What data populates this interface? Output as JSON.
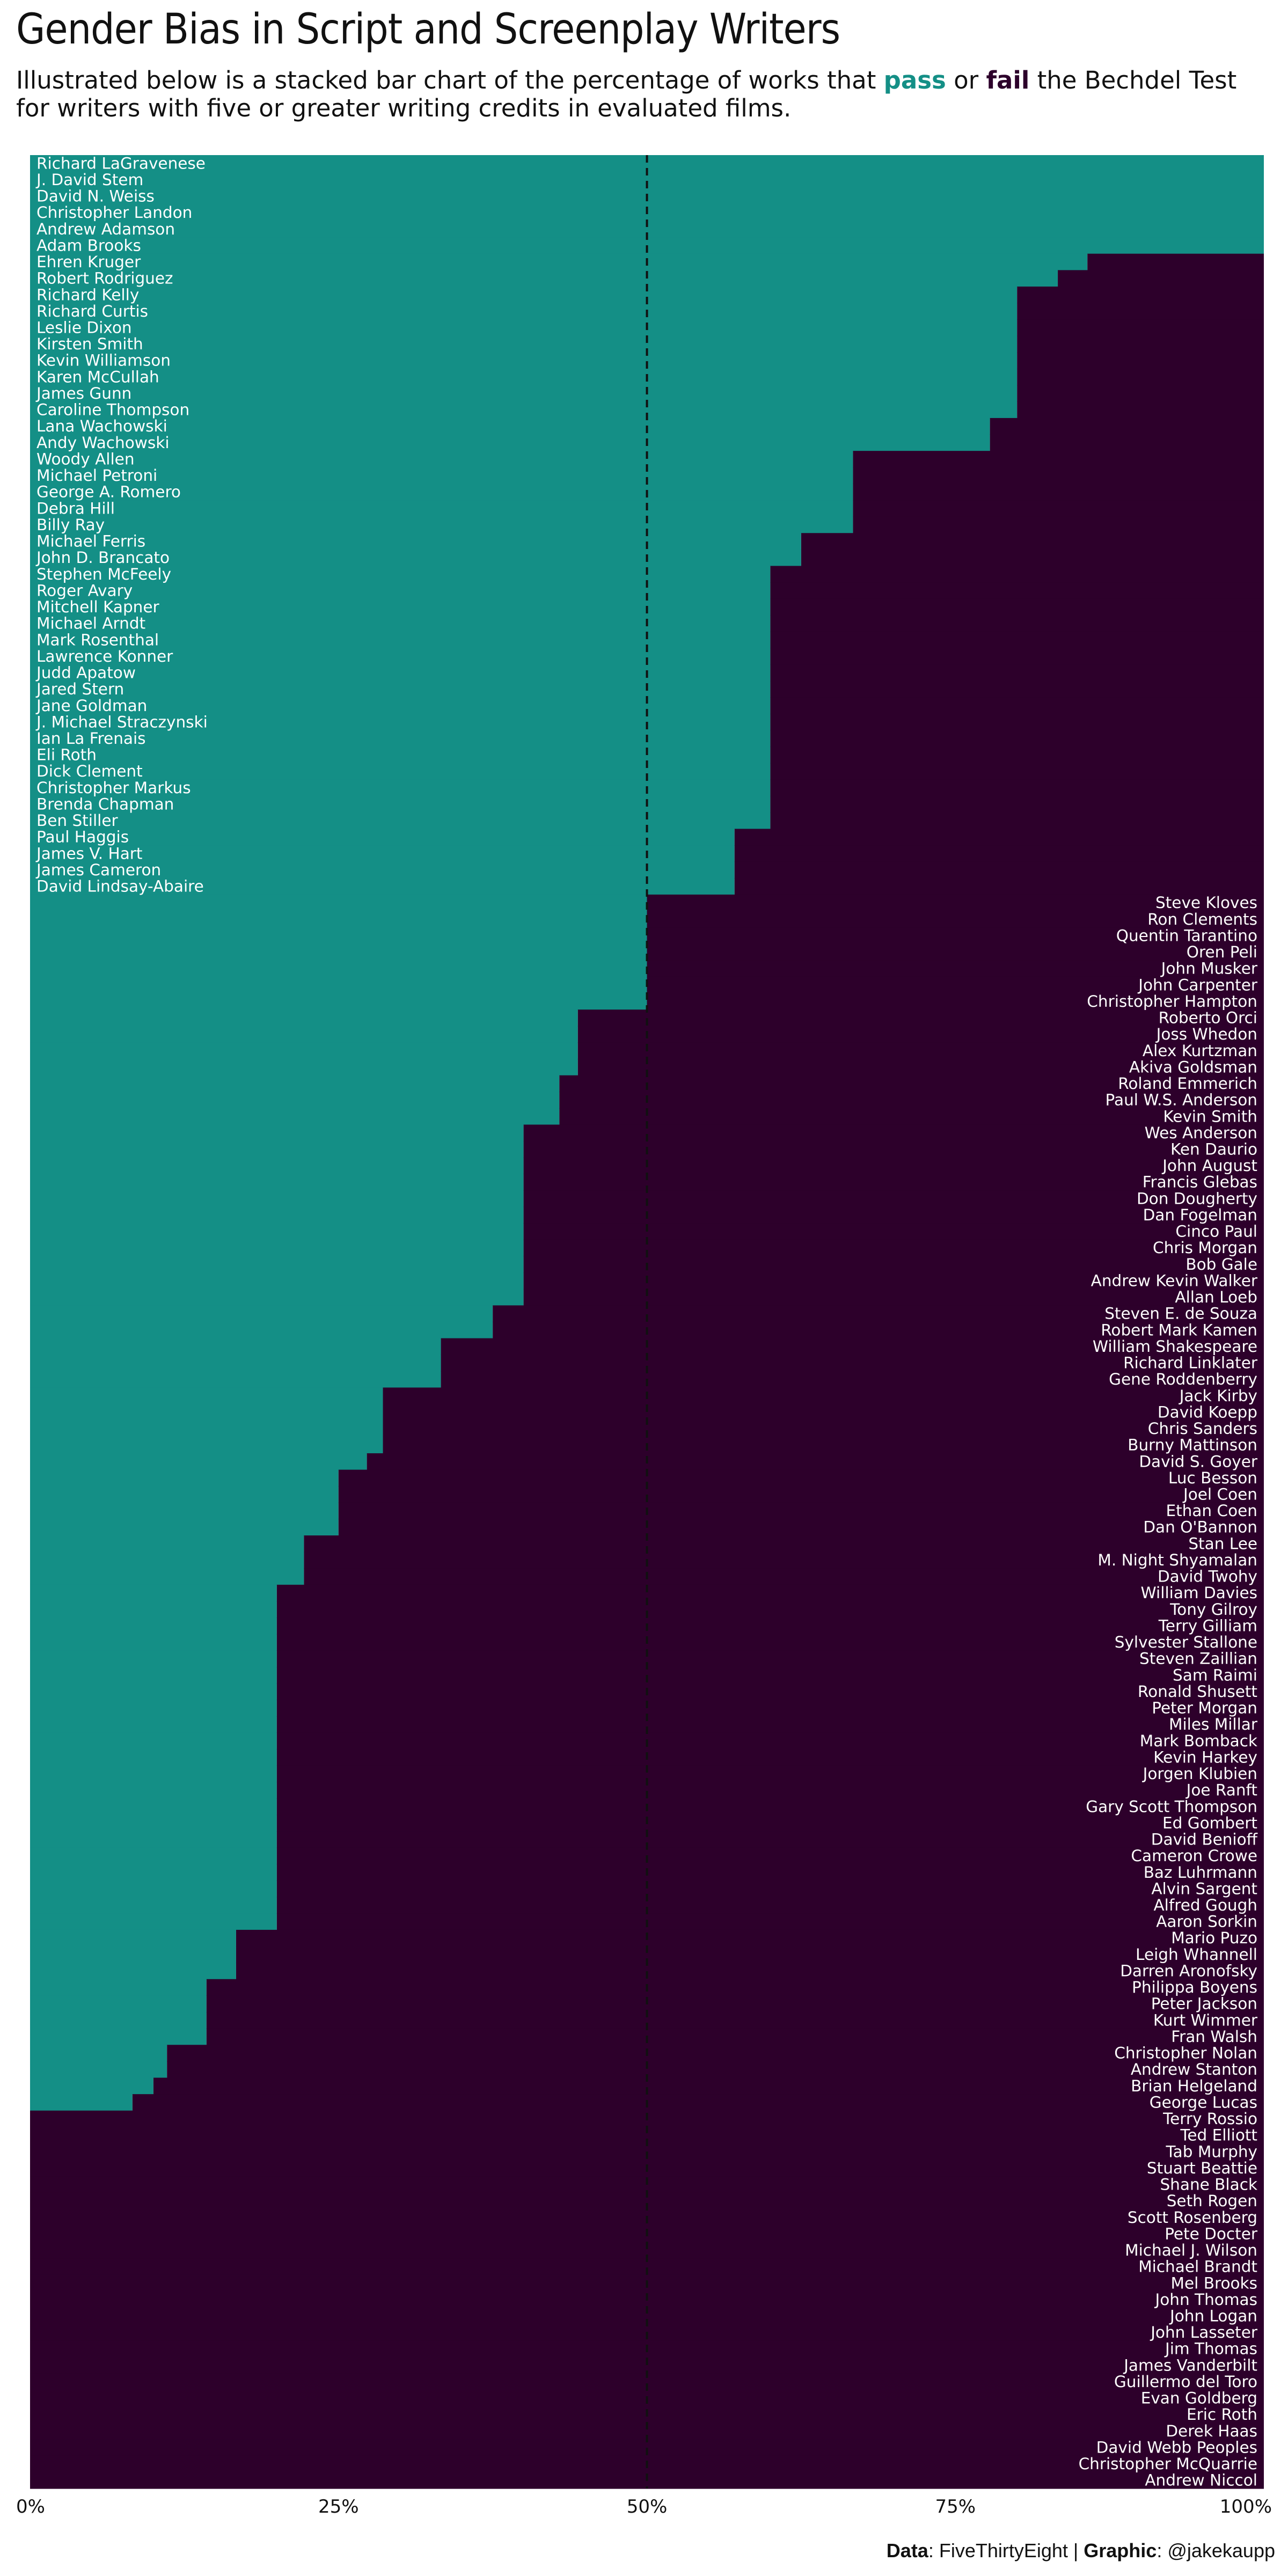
{
  "title": "Gender Bias in Script and Screenplay Writers",
  "subtitle": {
    "part1": "Illustrated below is a stacked bar chart of the percentage of works that ",
    "pass_word": "pass",
    "or_word": " or ",
    "fail_word": "fail",
    "part2": " the Bechdel Test for writers with five or greater writing credits in evaluated films."
  },
  "source": {
    "data_label": "Data",
    "data_value": ": FiveThirtyEight | ",
    "graphic_label": "Graphic",
    "graphic_value": ": @jakekaupp"
  },
  "colors": {
    "pass": "#148f86",
    "fail": "#2d002b",
    "reference_line": "#111111"
  },
  "chart_data": {
    "type": "bar",
    "orientation": "horizontal",
    "stacked": true,
    "series": [
      {
        "name": "pass",
        "color": "#148f86"
      },
      {
        "name": "fail",
        "color": "#2d002b"
      }
    ],
    "xlim": [
      0,
      100
    ],
    "x_ticks": [
      "0%",
      "25%",
      "50%",
      "75%",
      "100%"
    ],
    "reference_line": {
      "x": 50,
      "style": "dashed"
    },
    "grid": false,
    "legend": "inline in subtitle",
    "writers": [
      {
        "name": "Richard LaGravenese",
        "pass": 100
      },
      {
        "name": "J. David Stem",
        "pass": 100
      },
      {
        "name": "David N. Weiss",
        "pass": 100
      },
      {
        "name": "Christopher Landon",
        "pass": 100
      },
      {
        "name": "Andrew Adamson",
        "pass": 100
      },
      {
        "name": "Adam Brooks",
        "pass": 100
      },
      {
        "name": "Ehren Kruger",
        "pass": 85.7
      },
      {
        "name": "Robert Rodriguez",
        "pass": 83.3
      },
      {
        "name": "Richard Kelly",
        "pass": 80
      },
      {
        "name": "Richard Curtis",
        "pass": 80
      },
      {
        "name": "Leslie Dixon",
        "pass": 80
      },
      {
        "name": "Kirsten Smith",
        "pass": 80
      },
      {
        "name": "Kevin Williamson",
        "pass": 80
      },
      {
        "name": "Karen McCullah",
        "pass": 80
      },
      {
        "name": "James Gunn",
        "pass": 80
      },
      {
        "name": "Caroline Thompson",
        "pass": 80
      },
      {
        "name": "Lana Wachowski",
        "pass": 77.8
      },
      {
        "name": "Andy Wachowski",
        "pass": 77.8
      },
      {
        "name": "Woody Allen",
        "pass": 66.7
      },
      {
        "name": "Michael Petroni",
        "pass": 66.7
      },
      {
        "name": "George A. Romero",
        "pass": 66.7
      },
      {
        "name": "Debra Hill",
        "pass": 66.7
      },
      {
        "name": "Billy Ray",
        "pass": 66.7
      },
      {
        "name": "Michael Ferris",
        "pass": 62.5
      },
      {
        "name": "John D. Brancato",
        "pass": 62.5
      },
      {
        "name": "Stephen McFeely",
        "pass": 60
      },
      {
        "name": "Roger Avary",
        "pass": 60
      },
      {
        "name": "Mitchell Kapner",
        "pass": 60
      },
      {
        "name": "Michael Arndt",
        "pass": 60
      },
      {
        "name": "Mark Rosenthal",
        "pass": 60
      },
      {
        "name": "Lawrence Konner",
        "pass": 60
      },
      {
        "name": "Judd Apatow",
        "pass": 60
      },
      {
        "name": "Jared Stern",
        "pass": 60
      },
      {
        "name": "Jane Goldman",
        "pass": 60
      },
      {
        "name": "J. Michael Straczynski",
        "pass": 60
      },
      {
        "name": "Ian La Frenais",
        "pass": 60
      },
      {
        "name": "Eli Roth",
        "pass": 60
      },
      {
        "name": "Dick Clement",
        "pass": 60
      },
      {
        "name": "Christopher Markus",
        "pass": 60
      },
      {
        "name": "Brenda Chapman",
        "pass": 60
      },
      {
        "name": "Ben Stiller",
        "pass": 60
      },
      {
        "name": "Paul Haggis",
        "pass": 57.1
      },
      {
        "name": "James V. Hart",
        "pass": 57.1
      },
      {
        "name": "James Cameron",
        "pass": 57.1
      },
      {
        "name": "David Lindsay-Abaire",
        "pass": 57.1
      },
      {
        "name": "Steve Kloves",
        "pass": 50
      },
      {
        "name": "Ron Clements",
        "pass": 50
      },
      {
        "name": "Quentin Tarantino",
        "pass": 50
      },
      {
        "name": "Oren Peli",
        "pass": 50
      },
      {
        "name": "John Musker",
        "pass": 50
      },
      {
        "name": "John Carpenter",
        "pass": 50
      },
      {
        "name": "Christopher Hampton",
        "pass": 50
      },
      {
        "name": "Roberto Orci",
        "pass": 44.4
      },
      {
        "name": "Joss Whedon",
        "pass": 44.4
      },
      {
        "name": "Alex Kurtzman",
        "pass": 44.4
      },
      {
        "name": "Akiva Goldsman",
        "pass": 44.4
      },
      {
        "name": "Roland Emmerich",
        "pass": 42.9
      },
      {
        "name": "Paul W.S. Anderson",
        "pass": 42.9
      },
      {
        "name": "Kevin Smith",
        "pass": 42.9
      },
      {
        "name": "Wes Anderson",
        "pass": 40
      },
      {
        "name": "Ken Daurio",
        "pass": 40
      },
      {
        "name": "John August",
        "pass": 40
      },
      {
        "name": "Francis Glebas",
        "pass": 40
      },
      {
        "name": "Don Dougherty",
        "pass": 40
      },
      {
        "name": "Dan Fogelman",
        "pass": 40
      },
      {
        "name": "Cinco Paul",
        "pass": 40
      },
      {
        "name": "Chris Morgan",
        "pass": 40
      },
      {
        "name": "Bob Gale",
        "pass": 40
      },
      {
        "name": "Andrew Kevin Walker",
        "pass": 40
      },
      {
        "name": "Allan Loeb",
        "pass": 40
      },
      {
        "name": "Steven E. de Souza",
        "pass": 37.5
      },
      {
        "name": "Robert Mark Kamen",
        "pass": 37.5
      },
      {
        "name": "William Shakespeare",
        "pass": 33.3
      },
      {
        "name": "Richard Linklater",
        "pass": 33.3
      },
      {
        "name": "Gene Roddenberry",
        "pass": 33.3
      },
      {
        "name": "Jack Kirby",
        "pass": 28.6
      },
      {
        "name": "David Koepp",
        "pass": 28.6
      },
      {
        "name": "Chris Sanders",
        "pass": 28.6
      },
      {
        "name": "Burny Mattinson",
        "pass": 28.6
      },
      {
        "name": "David S. Goyer",
        "pass": 27.3
      },
      {
        "name": "Luc Besson",
        "pass": 25
      },
      {
        "name": "Joel Coen",
        "pass": 25
      },
      {
        "name": "Ethan Coen",
        "pass": 25
      },
      {
        "name": "Dan O'Bannon",
        "pass": 25
      },
      {
        "name": "Stan Lee",
        "pass": 22.2
      },
      {
        "name": "M. Night Shyamalan",
        "pass": 22.2
      },
      {
        "name": "David Twohy",
        "pass": 22.2
      },
      {
        "name": "William Davies",
        "pass": 20
      },
      {
        "name": "Tony Gilroy",
        "pass": 20
      },
      {
        "name": "Terry Gilliam",
        "pass": 20
      },
      {
        "name": "Sylvester Stallone",
        "pass": 20
      },
      {
        "name": "Steven Zaillian",
        "pass": 20
      },
      {
        "name": "Sam Raimi",
        "pass": 20
      },
      {
        "name": "Ronald Shusett",
        "pass": 20
      },
      {
        "name": "Peter Morgan",
        "pass": 20
      },
      {
        "name": "Miles Millar",
        "pass": 20
      },
      {
        "name": "Mark Bomback",
        "pass": 20
      },
      {
        "name": "Kevin Harkey",
        "pass": 20
      },
      {
        "name": "Jorgen Klubien",
        "pass": 20
      },
      {
        "name": "Joe Ranft",
        "pass": 20
      },
      {
        "name": "Gary Scott Thompson",
        "pass": 20
      },
      {
        "name": "Ed Gombert",
        "pass": 20
      },
      {
        "name": "David Benioff",
        "pass": 20
      },
      {
        "name": "Cameron Crowe",
        "pass": 20
      },
      {
        "name": "Baz Luhrmann",
        "pass": 20
      },
      {
        "name": "Alvin Sargent",
        "pass": 20
      },
      {
        "name": "Alfred Gough",
        "pass": 20
      },
      {
        "name": "Aaron Sorkin",
        "pass": 20
      },
      {
        "name": "Mario Puzo",
        "pass": 16.7
      },
      {
        "name": "Leigh Whannell",
        "pass": 16.7
      },
      {
        "name": "Darren Aronofsky",
        "pass": 16.7
      },
      {
        "name": "Philippa Boyens",
        "pass": 14.3
      },
      {
        "name": "Peter Jackson",
        "pass": 14.3
      },
      {
        "name": "Kurt Wimmer",
        "pass": 14.3
      },
      {
        "name": "Fran Walsh",
        "pass": 14.3
      },
      {
        "name": "Christopher Nolan",
        "pass": 11.1
      },
      {
        "name": "Andrew Stanton",
        "pass": 11.1
      },
      {
        "name": "Brian Helgeland",
        "pass": 10
      },
      {
        "name": "George Lucas",
        "pass": 8.3
      },
      {
        "name": "Terry Rossio",
        "pass": 0
      },
      {
        "name": "Ted Elliott",
        "pass": 0
      },
      {
        "name": "Tab Murphy",
        "pass": 0
      },
      {
        "name": "Stuart Beattie",
        "pass": 0
      },
      {
        "name": "Shane Black",
        "pass": 0
      },
      {
        "name": "Seth Rogen",
        "pass": 0
      },
      {
        "name": "Scott Rosenberg",
        "pass": 0
      },
      {
        "name": "Pete Docter",
        "pass": 0
      },
      {
        "name": "Michael J. Wilson",
        "pass": 0
      },
      {
        "name": "Michael Brandt",
        "pass": 0
      },
      {
        "name": "Mel Brooks",
        "pass": 0
      },
      {
        "name": "John Thomas",
        "pass": 0
      },
      {
        "name": "John Logan",
        "pass": 0
      },
      {
        "name": "John Lasseter",
        "pass": 0
      },
      {
        "name": "Jim Thomas",
        "pass": 0
      },
      {
        "name": "James Vanderbilt",
        "pass": 0
      },
      {
        "name": "Guillermo del Toro",
        "pass": 0
      },
      {
        "name": "Evan Goldberg",
        "pass": 0
      },
      {
        "name": "Eric Roth",
        "pass": 0
      },
      {
        "name": "Derek Haas",
        "pass": 0
      },
      {
        "name": "David Webb Peoples",
        "pass": 0
      },
      {
        "name": "Christopher McQuarrie",
        "pass": 0
      },
      {
        "name": "Andrew Niccol",
        "pass": 0
      }
    ]
  }
}
